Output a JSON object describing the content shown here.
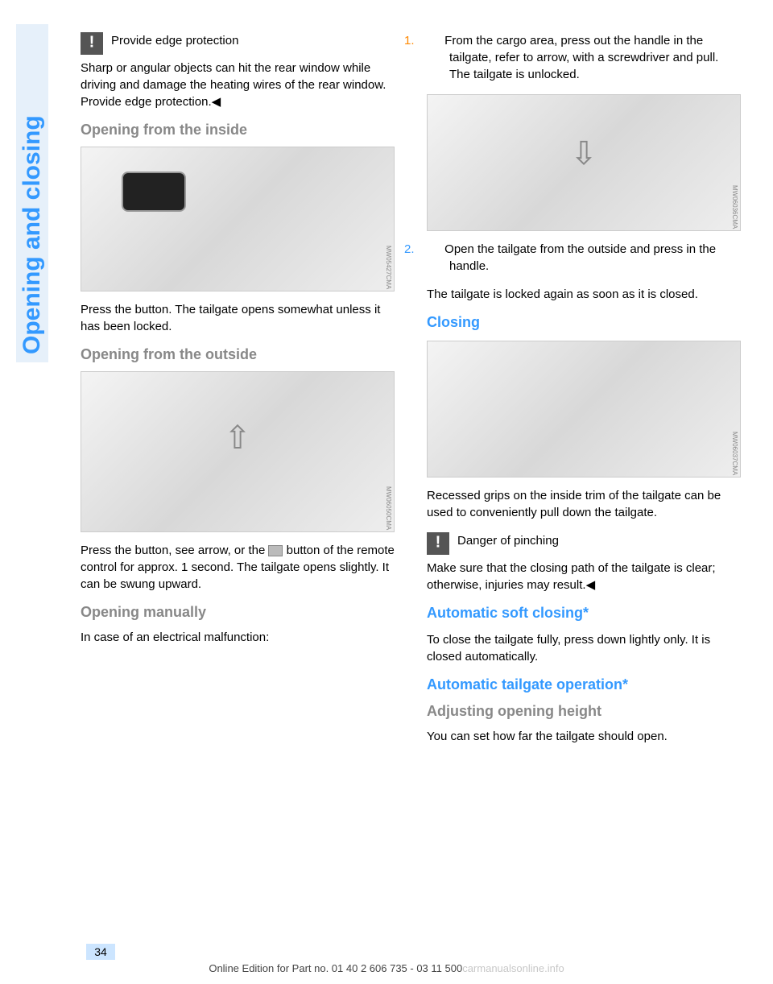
{
  "side_tab": "Opening and closing",
  "left": {
    "warn_title": "Provide edge protection",
    "warn_body": "Sharp or angular objects can hit the rear window while driving and damage the heating wires of the rear window. Provide edge protection.◀",
    "h_inside": "Opening from the inside",
    "img1_code": "MW05427CMA",
    "p_inside": "Press the button. The tailgate opens somewhat unless it has been locked.",
    "h_outside": "Opening from the outside",
    "img2_code": "MW06050CMA",
    "p_outside_a": "Press the button, see arrow, or the ",
    "p_outside_b": " button of the remote control for approx. 1 second. The tailgate opens slightly. It can be swung upward.",
    "h_manual": "Opening manually",
    "p_manual": "In case of an electrical malfunction:"
  },
  "right": {
    "step1_num": "1.",
    "step1": "From the cargo area, press out the handle in the tailgate, refer to arrow, with a screwdriver and pull. The tailgate is unlocked.",
    "img3_code": "MW06036CMA",
    "step2_num": "2.",
    "step2": "Open the tailgate from the outside and press in the handle.",
    "p_after_steps": "The tailgate is locked again as soon as it is closed.",
    "h_closing": "Closing",
    "img4_code": "MW06037CMA",
    "p_closing": "Recessed grips on the inside trim of the tailgate can be used to conveniently pull down the tailgate.",
    "warn2_title": "Danger of pinching",
    "warn2_body": "Make sure that the closing path of the tailgate is clear; otherwise, injuries may result.◀",
    "h_soft": "Automatic soft closing*",
    "p_soft": "To close the tailgate fully, press down lightly only. It is closed automatically.",
    "h_auto": "Automatic tailgate operation*",
    "h_adjust": "Adjusting opening height",
    "p_adjust": "You can set how far the tailgate should open."
  },
  "page_number": "34",
  "footer": "Online Edition for Part no. 01 40 2 606 735 - 03 11 500",
  "watermark": "carmanualsonline.info"
}
